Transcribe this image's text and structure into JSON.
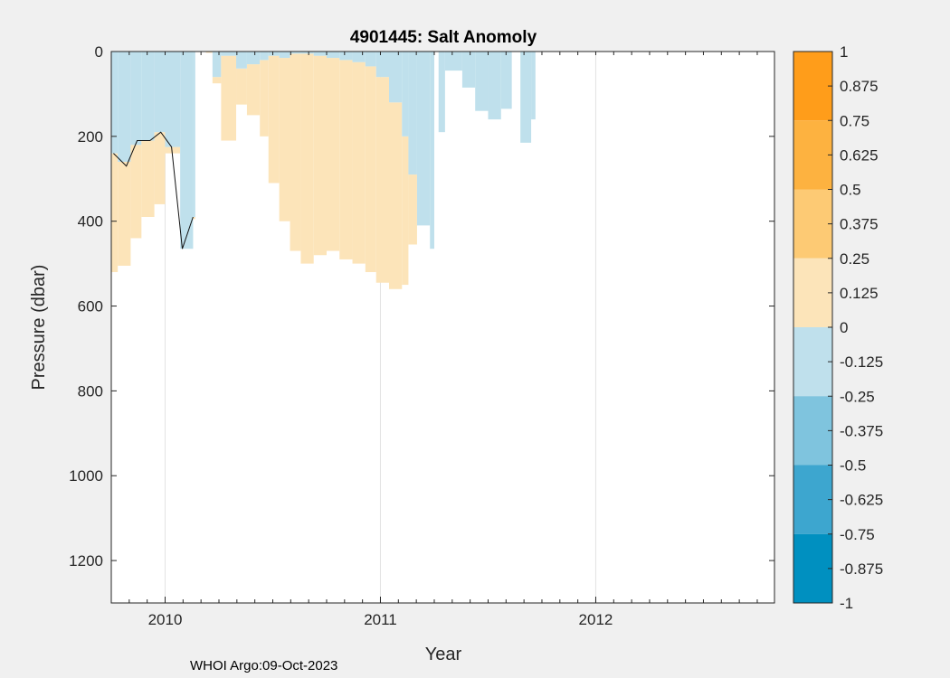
{
  "chart_data": {
    "type": "contourf",
    "title": "4901445: Salt Anomoly",
    "xlabel": "Year",
    "ylabel": "Pressure (dbar)",
    "credit": "WHOI Argo:09-Oct-2023",
    "xlim": [
      2009.75,
      2012.83
    ],
    "ylim": [
      0,
      1300
    ],
    "y_reversed": true,
    "x_ticks": [
      2010,
      2011,
      2012
    ],
    "x_tick_labels": [
      "2010",
      "2011",
      "2012"
    ],
    "y_ticks": [
      0,
      200,
      400,
      600,
      800,
      1000,
      1200
    ],
    "y_tick_labels": [
      "0",
      "200",
      "400",
      "600",
      "800",
      "1000",
      "1200"
    ],
    "vertical_grid": true,
    "colorbar": {
      "min": -1,
      "max": 1,
      "tick_values": [
        1,
        0.875,
        0.75,
        0.625,
        0.5,
        0.375,
        0.25,
        0.125,
        0,
        -0.125,
        -0.25,
        -0.375,
        -0.5,
        -0.625,
        -0.75,
        -0.875,
        -1
      ],
      "tick_labels": [
        "1",
        "0.875",
        "0.75",
        "0.625",
        "0.5",
        "0.375",
        "0.25",
        "0.125",
        "0",
        "-0.125",
        "-0.25",
        "-0.375",
        "-0.5",
        "-0.625",
        "-0.75",
        "-0.875",
        "-1"
      ],
      "bands": [
        {
          "from": 0.75,
          "to": 1,
          "color": "#ff9d1a"
        },
        {
          "from": 0.5,
          "to": 0.75,
          "color": "#fdb240"
        },
        {
          "from": 0.25,
          "to": 0.5,
          "color": "#fdca74"
        },
        {
          "from": 0,
          "to": 0.25,
          "color": "#fce4b9"
        },
        {
          "from": -0.25,
          "to": 0,
          "color": "#bfe0ec"
        },
        {
          "from": -0.5,
          "to": -0.25,
          "color": "#7fc4de"
        },
        {
          "from": -0.75,
          "to": -0.5,
          "color": "#3da6cf"
        },
        {
          "from": -1,
          "to": -0.75,
          "color": "#0090c0"
        }
      ]
    },
    "profiles": [
      {
        "t0": 2009.75,
        "t1": 2009.78,
        "neg_to": 240,
        "bottom": 520
      },
      {
        "t0": 2009.78,
        "t1": 2009.84,
        "neg_to": 260,
        "bottom": 505
      },
      {
        "t0": 2009.84,
        "t1": 2009.89,
        "neg_to": 220,
        "bottom": 440
      },
      {
        "t0": 2009.89,
        "t1": 2009.95,
        "neg_to": 210,
        "bottom": 390
      },
      {
        "t0": 2009.95,
        "t1": 2010.0,
        "neg_to": 190,
        "bottom": 360
      },
      {
        "t0": 2010.0,
        "t1": 2010.07,
        "neg_to": 225,
        "bottom": 240
      },
      {
        "t0": 2010.07,
        "t1": 2010.13,
        "neg_to": 465,
        "bottom": 465
      },
      {
        "t0": 2010.13,
        "t1": 2010.14,
        "neg_to": 390,
        "bottom": 395
      },
      {
        "t0": 2010.19,
        "t1": 2010.22,
        "neg_to": 0,
        "bottom": 3
      },
      {
        "t0": 2010.22,
        "t1": 2010.26,
        "neg_to": 60,
        "bottom": 75
      },
      {
        "t0": 2010.26,
        "t1": 2010.33,
        "neg_to": 10,
        "bottom": 210
      },
      {
        "t0": 2010.33,
        "t1": 2010.38,
        "neg_to": 40,
        "bottom": 125
      },
      {
        "t0": 2010.38,
        "t1": 2010.44,
        "neg_to": 30,
        "bottom": 150
      },
      {
        "t0": 2010.44,
        "t1": 2010.48,
        "neg_to": 20,
        "bottom": 200
      },
      {
        "t0": 2010.48,
        "t1": 2010.53,
        "neg_to": 10,
        "bottom": 310
      },
      {
        "t0": 2010.53,
        "t1": 2010.58,
        "neg_to": 15,
        "bottom": 400
      },
      {
        "t0": 2010.58,
        "t1": 2010.63,
        "neg_to": 5,
        "bottom": 470
      },
      {
        "t0": 2010.63,
        "t1": 2010.69,
        "neg_to": 5,
        "bottom": 500
      },
      {
        "t0": 2010.69,
        "t1": 2010.75,
        "neg_to": 10,
        "bottom": 480
      },
      {
        "t0": 2010.75,
        "t1": 2010.81,
        "neg_to": 15,
        "bottom": 470
      },
      {
        "t0": 2010.81,
        "t1": 2010.87,
        "neg_to": 20,
        "bottom": 490
      },
      {
        "t0": 2010.87,
        "t1": 2010.93,
        "neg_to": 25,
        "bottom": 500
      },
      {
        "t0": 2010.93,
        "t1": 2010.98,
        "neg_to": 35,
        "bottom": 520
      },
      {
        "t0": 2010.98,
        "t1": 2011.04,
        "neg_to": 60,
        "bottom": 545
      },
      {
        "t0": 2011.04,
        "t1": 2011.1,
        "neg_to": 120,
        "bottom": 560
      },
      {
        "t0": 2011.1,
        "t1": 2011.13,
        "neg_to": 200,
        "bottom": 550
      },
      {
        "t0": 2011.13,
        "t1": 2011.17,
        "neg_to": 290,
        "bottom": 455
      },
      {
        "t0": 2011.17,
        "t1": 2011.23,
        "neg_to": 410,
        "bottom": 410
      },
      {
        "t0": 2011.23,
        "t1": 2011.25,
        "neg_to": 465,
        "bottom": 465
      },
      {
        "t0": 2011.27,
        "t1": 2011.3,
        "neg_to": 190,
        "bottom": 190
      },
      {
        "t0": 2011.3,
        "t1": 2011.38,
        "neg_to": 45,
        "bottom": 45
      },
      {
        "t0": 2011.38,
        "t1": 2011.44,
        "neg_to": 85,
        "bottom": 85
      },
      {
        "t0": 2011.44,
        "t1": 2011.5,
        "neg_to": 140,
        "bottom": 140
      },
      {
        "t0": 2011.5,
        "t1": 2011.56,
        "neg_to": 160,
        "bottom": 160
      },
      {
        "t0": 2011.56,
        "t1": 2011.61,
        "neg_to": 135,
        "bottom": 135
      },
      {
        "t0": 2011.65,
        "t1": 2011.7,
        "neg_to": 215,
        "bottom": 215
      },
      {
        "t0": 2011.7,
        "t1": 2011.72,
        "neg_to": 160,
        "bottom": 160
      }
    ],
    "contour_0_line": [
      [
        2009.76,
        240
      ],
      [
        2009.82,
        270
      ],
      [
        2009.87,
        210
      ],
      [
        2009.93,
        210
      ],
      [
        2009.98,
        190
      ],
      [
        2010.03,
        225
      ],
      [
        2010.08,
        465
      ],
      [
        2010.13,
        390
      ]
    ]
  }
}
